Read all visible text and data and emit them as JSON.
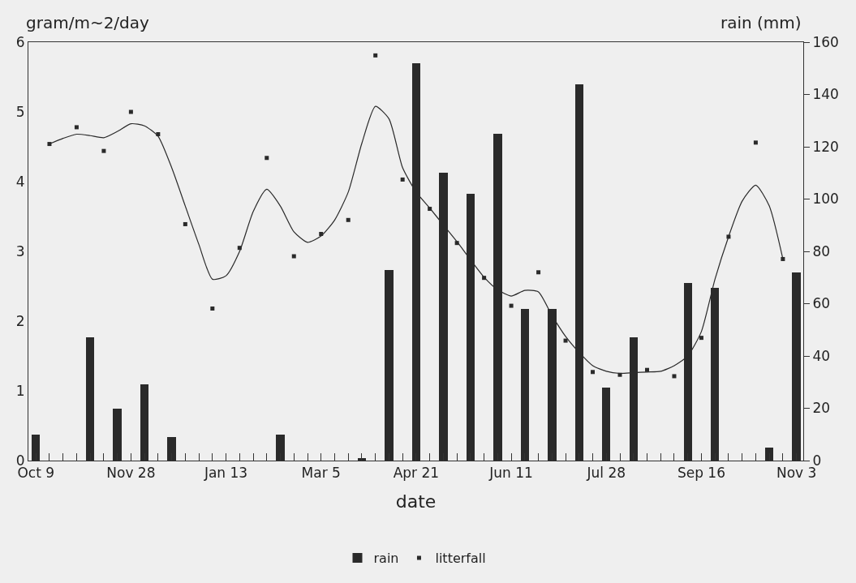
{
  "chart_data": {
    "type": "bar",
    "xlabel": "date",
    "ylabel": "gram/m~2/day",
    "y2label": "rain (mm)",
    "categories": [
      "Oct 9",
      null,
      null,
      null,
      null,
      null,
      null,
      "Nov 28",
      null,
      null,
      null,
      null,
      null,
      null,
      "Jan 13",
      null,
      null,
      null,
      null,
      null,
      null,
      "Mar 5",
      null,
      null,
      null,
      null,
      null,
      null,
      "Apr 21",
      null,
      null,
      null,
      null,
      null,
      null,
      "Jun 11",
      null,
      null,
      null,
      null,
      null,
      null,
      "Jul 28",
      null,
      null,
      null,
      null,
      null,
      null,
      "Sep 16",
      null,
      null,
      null,
      null,
      null,
      null,
      "Nov 3"
    ],
    "ylim": [
      0,
      6
    ],
    "yticks": [
      0,
      1,
      2,
      3,
      4,
      5,
      6
    ],
    "y2lim": [
      0,
      160
    ],
    "y2ticks": [
      0,
      20,
      40,
      60,
      80,
      100,
      120,
      140,
      160
    ],
    "grid": false,
    "legend": "bottom",
    "series": [
      {
        "name": "rain",
        "axis": "y2",
        "color": "#2a2a2a",
        "values": [
          10,
          null,
          null,
          null,
          47,
          null,
          20,
          null,
          29,
          null,
          9,
          null,
          null,
          null,
          null,
          null,
          null,
          null,
          10,
          null,
          null,
          null,
          null,
          null,
          1,
          null,
          73,
          null,
          152,
          null,
          110,
          null,
          102,
          null,
          125,
          null,
          58,
          null,
          58,
          null,
          144,
          null,
          28,
          null,
          47,
          null,
          null,
          null,
          68,
          null,
          66,
          null,
          null,
          null,
          5,
          null,
          72
        ]
      },
      {
        "name": "litterfall",
        "type": "scatter",
        "marker": "square",
        "color": "#2a2a2a",
        "values": [
          null,
          4.54,
          null,
          4.78,
          null,
          4.44,
          null,
          5.0,
          null,
          4.68,
          null,
          3.39,
          null,
          2.18,
          null,
          3.05,
          null,
          4.34,
          null,
          2.93,
          null,
          3.25,
          null,
          3.45,
          null,
          5.81,
          null,
          4.03,
          null,
          3.61,
          null,
          3.12,
          null,
          2.62,
          null,
          2.22,
          null,
          2.7,
          null,
          1.72,
          null,
          1.27,
          null,
          1.23,
          null,
          1.3,
          null,
          1.21,
          null,
          1.76,
          null,
          3.21,
          null,
          4.56,
          null,
          2.89,
          null
        ]
      },
      {
        "type": "line",
        "marker": "none",
        "color": "#2a2a2a",
        "line_style": "solid",
        "values": [
          null,
          4.54,
          4.62,
          4.68,
          4.66,
          4.63,
          4.72,
          4.83,
          4.8,
          4.65,
          4.2,
          3.65,
          3.1,
          2.6,
          2.65,
          3.0,
          3.57,
          3.89,
          3.65,
          3.28,
          3.13,
          3.22,
          3.45,
          3.85,
          4.55,
          5.08,
          4.9,
          4.2,
          3.85,
          3.62,
          3.38,
          3.14,
          2.88,
          2.63,
          2.45,
          2.36,
          2.44,
          2.42,
          2.08,
          1.78,
          1.55,
          1.36,
          1.28,
          1.25,
          1.26,
          1.27,
          1.28,
          1.36,
          1.5,
          1.85,
          2.6,
          3.21,
          3.72,
          3.95,
          3.65,
          2.89,
          null
        ]
      }
    ]
  }
}
